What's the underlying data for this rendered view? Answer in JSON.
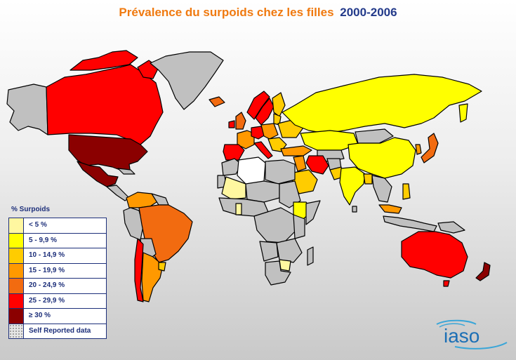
{
  "title": {
    "main": "Prévalence du surpoids chez les filles",
    "years": "2000-2006"
  },
  "legend": {
    "title": "% Surpoids",
    "items": [
      {
        "label": "< 5 %",
        "color": "#fff7a0"
      },
      {
        "label": "5 - 9,9 %",
        "color": "#ffff00"
      },
      {
        "label": "10 - 14,9 %",
        "color": "#ffcc00"
      },
      {
        "label": "15 - 19,9 %",
        "color": "#ff9900"
      },
      {
        "label": "20 - 24,9 %",
        "color": "#f26b10"
      },
      {
        "label": "25 - 29,9 %",
        "color": "#ff0000"
      },
      {
        "label": "≥ 30 %",
        "color": "#8b0000"
      },
      {
        "label": "Self Reported data",
        "color": "dotted"
      }
    ]
  },
  "colors": {
    "no_data": "#c0c0c0",
    "outline": "#000000"
  },
  "logo": {
    "text": "iaso"
  }
}
